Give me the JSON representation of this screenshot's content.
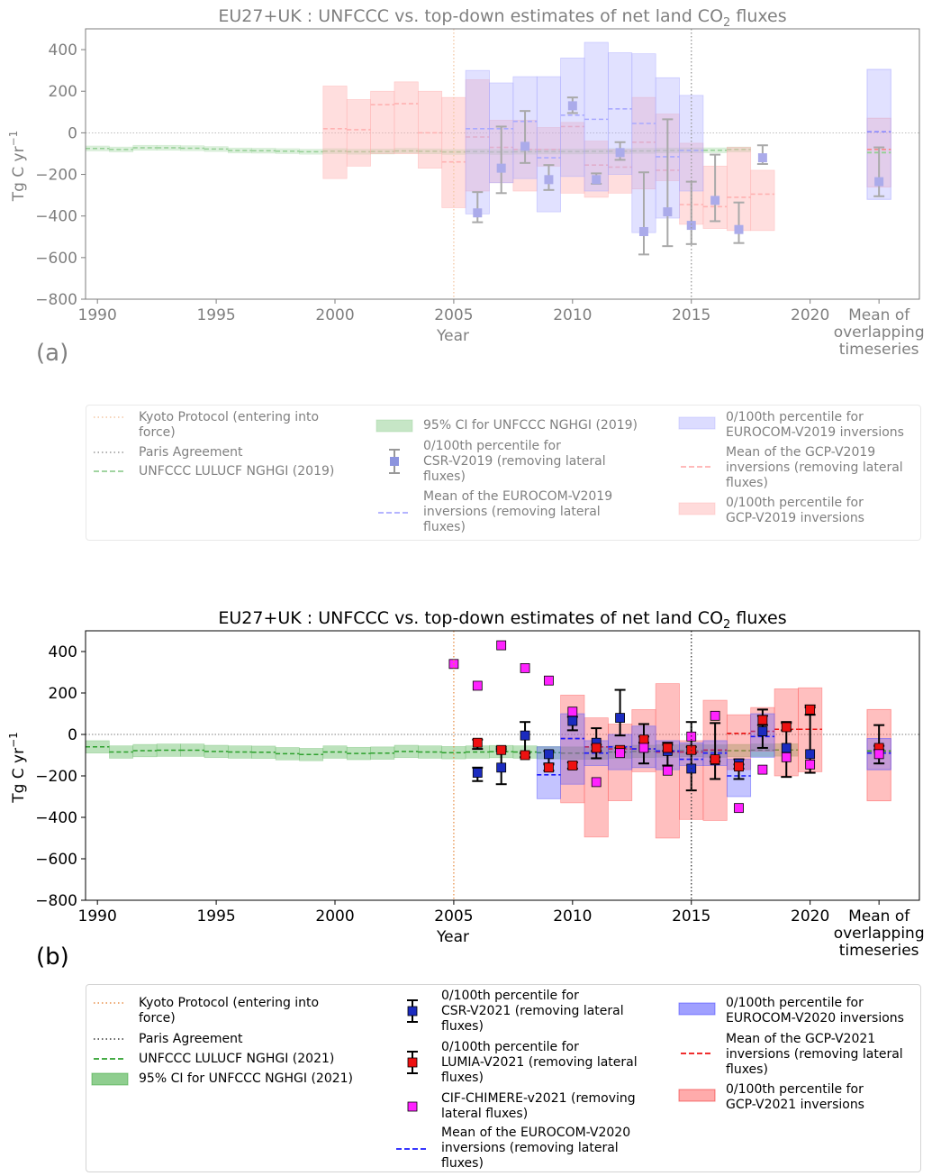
{
  "colors": {
    "kyoto": "#e8904a",
    "paris": "#333333",
    "nghgi_line": "#2ca02c",
    "nghgi_band": "#8fce8f",
    "csr": "#1b2bbf",
    "lumia": "#ee1111",
    "chimere": "#ff22ff",
    "eurocom": "#5555ff",
    "gcp": "#ff6666",
    "err": "#000000"
  },
  "chart_data": [
    {
      "type": "bar",
      "panel": "(a)",
      "faded": true,
      "title_main": "EU27+UK : UNFCCC vs. top-down estimates of net land CO",
      "title_sub": "2",
      "title_tail": " fluxes",
      "ylabel": "Tg C yr",
      "ylabel_sup": "−1",
      "xlabel": "Year",
      "ylim": [
        -800,
        500
      ],
      "xlim": [
        1989.5,
        2024.6
      ],
      "yticks": [
        "400",
        "200",
        "0",
        "−200",
        "−400",
        "−600",
        "−800"
      ],
      "ytick_values": [
        400,
        200,
        0,
        -200,
        -400,
        -600,
        -800
      ],
      "xticks": [
        "1990",
        "1995",
        "2000",
        "2005",
        "2010",
        "2015",
        "2020"
      ],
      "xtick_values": [
        1990,
        1995,
        2000,
        2005,
        2010,
        2015,
        2020
      ],
      "mean_label": "Mean of\noverlapping\ntimeseries",
      "kyoto_year": 2005,
      "paris_year": 2015,
      "nghgi": {
        "years": [
          1990,
          1991,
          1992,
          1993,
          1994,
          1995,
          1996,
          1997,
          1998,
          1999,
          2000,
          2001,
          2002,
          2003,
          2004,
          2005,
          2006,
          2007,
          2008,
          2009,
          2010,
          2011,
          2012,
          2013,
          2014,
          2015,
          2016,
          2017
        ],
        "values": [
          -75,
          -80,
          -72,
          -72,
          -74,
          -78,
          -85,
          -86,
          -88,
          -91,
          -88,
          -91,
          -90,
          -87,
          -89,
          -92,
          -90,
          -92,
          -91,
          -90,
          -90,
          -89,
          -88,
          -87,
          -85,
          -84,
          -84,
          -80
        ],
        "ci": 12
      },
      "eurocom": {
        "years": [
          2006,
          2007,
          2008,
          2009,
          2010,
          2011,
          2012,
          2013,
          2014,
          2015
        ],
        "min": [
          -390,
          -240,
          -220,
          -380,
          -210,
          -280,
          -200,
          -480,
          -410,
          -280
        ],
        "max": [
          300,
          240,
          270,
          270,
          360,
          435,
          385,
          380,
          265,
          180
        ],
        "mean": [
          20,
          20,
          55,
          -120,
          85,
          65,
          115,
          45,
          -115,
          -85
        ]
      },
      "gcp": {
        "years": [
          2000,
          2001,
          2002,
          2003,
          2004,
          2005,
          2006,
          2007,
          2008,
          2009,
          2010,
          2011,
          2012,
          2013,
          2014,
          2015,
          2016,
          2017,
          2018
        ],
        "min": [
          -220,
          -160,
          -100,
          -100,
          -170,
          -360,
          -280,
          -240,
          -280,
          -160,
          -290,
          -310,
          -290,
          -270,
          -230,
          -440,
          -460,
          -470,
          -470
        ],
        "max": [
          225,
          160,
          200,
          245,
          200,
          170,
          255,
          60,
          60,
          25,
          50,
          -40,
          -80,
          170,
          90,
          -50,
          -160,
          -70,
          -180
        ],
        "mean": [
          20,
          15,
          135,
          140,
          0,
          -140,
          -20,
          -70,
          -80,
          -80,
          30,
          -155,
          -165,
          -45,
          -180,
          -345,
          -355,
          -310,
          -295
        ]
      },
      "csr": {
        "years": [
          2006,
          2007,
          2008,
          2009,
          2010,
          2011,
          2012,
          2013,
          2014,
          2015,
          2016,
          2017,
          2018
        ],
        "values": [
          -385,
          -170,
          -65,
          -225,
          130,
          -225,
          -95,
          -475,
          -380,
          -445,
          -325,
          -465,
          -120
        ],
        "min": [
          -430,
          -290,
          -145,
          -275,
          95,
          -245,
          -130,
          -585,
          -545,
          -535,
          -425,
          -530,
          -150
        ],
        "max": [
          -285,
          30,
          105,
          -155,
          170,
          -195,
          -45,
          -190,
          65,
          -235,
          -105,
          -335,
          -60
        ]
      },
      "mean_col": {
        "eurocom_min": -320,
        "eurocom_max": 305,
        "eurocom_mean": 5,
        "gcp_min": -260,
        "gcp_max": 70,
        "gcp_mean": -80,
        "nghgi_value": -95,
        "csr_value": -235,
        "csr_min": -305,
        "csr_max": -70
      }
    },
    {
      "type": "bar",
      "panel": "(b)",
      "faded": false,
      "title_main": "EU27+UK : UNFCCC vs. top-down estimates of net land CO",
      "title_sub": "2",
      "title_tail": " fluxes",
      "ylabel": "Tg C yr",
      "ylabel_sup": "−1",
      "xlabel": "Year",
      "ylim": [
        -800,
        500
      ],
      "xlim": [
        1989.5,
        2024.6
      ],
      "yticks": [
        "400",
        "200",
        "0",
        "−200",
        "−400",
        "−600",
        "−800"
      ],
      "ytick_values": [
        400,
        200,
        0,
        -200,
        -400,
        -600,
        -800
      ],
      "xticks": [
        "1990",
        "1995",
        "2000",
        "2005",
        "2010",
        "2015",
        "2020"
      ],
      "xtick_values": [
        1990,
        1995,
        2000,
        2005,
        2010,
        2015,
        2020
      ],
      "mean_label": "Mean of\noverlapping\ntimeseries",
      "kyoto_year": 2005,
      "paris_year": 2015,
      "nghgi": {
        "years": [
          1990,
          1991,
          1992,
          1993,
          1994,
          1995,
          1996,
          1997,
          1998,
          1999,
          2000,
          2001,
          2002,
          2003,
          2004,
          2005,
          2006,
          2007,
          2008,
          2009,
          2010,
          2011,
          2012,
          2013,
          2014,
          2015,
          2016,
          2017,
          2018,
          2019
        ],
        "values": [
          -60,
          -85,
          -78,
          -76,
          -76,
          -82,
          -85,
          -86,
          -93,
          -97,
          -85,
          -92,
          -90,
          -82,
          -85,
          -88,
          -85,
          -83,
          -85,
          -88,
          -90,
          -90,
          -85,
          -82,
          -80,
          -78,
          -80,
          -78,
          -76,
          -75
        ],
        "ci": 30
      },
      "eurocom": {
        "years": [
          2009,
          2010,
          2011,
          2012,
          2013,
          2014,
          2015,
          2016,
          2017,
          2018
        ],
        "min": [
          -310,
          -240,
          -150,
          -170,
          -160,
          -170,
          -150,
          -150,
          -300,
          -110
        ],
        "max": [
          -60,
          100,
          -30,
          0,
          40,
          -30,
          -40,
          -30,
          -120,
          100
        ],
        "mean": [
          -195,
          -20,
          -90,
          -60,
          -70,
          -80,
          -120,
          -90,
          -200,
          -10
        ]
      },
      "gcp": {
        "years": [
          2010,
          2011,
          2012,
          2013,
          2014,
          2015,
          2016,
          2017,
          2018,
          2019,
          2020
        ],
        "min": [
          -330,
          -495,
          -320,
          -180,
          -500,
          -410,
          -415,
          -170,
          -80,
          -200,
          -180
        ],
        "max": [
          190,
          80,
          50,
          120,
          245,
          -30,
          165,
          95,
          130,
          220,
          225
        ],
        "mean": [
          -20,
          -60,
          -70,
          -70,
          -85,
          -85,
          -75,
          5,
          15,
          25,
          25
        ]
      },
      "csr": {
        "years": [
          2006,
          2007,
          2008,
          2009,
          2010,
          2011,
          2012,
          2013,
          2014,
          2015,
          2016,
          2017,
          2018,
          2019,
          2020
        ],
        "values": [
          -185,
          -160,
          -5,
          -95,
          65,
          -40,
          80,
          -60,
          -80,
          -165,
          -125,
          -140,
          15,
          -65,
          -95
        ],
        "min": [
          -225,
          -240,
          -90,
          -140,
          20,
          -115,
          -5,
          -140,
          -150,
          -270,
          -215,
          -215,
          -65,
          -205,
          -185
        ],
        "max": [
          -160,
          -70,
          60,
          -80,
          85,
          30,
          215,
          50,
          -40,
          60,
          55,
          -120,
          120,
          60,
          130
        ]
      },
      "lumia": {
        "years": [
          2006,
          2007,
          2008,
          2009,
          2010,
          2011,
          2012,
          2013,
          2014,
          2015,
          2016,
          2017,
          2018,
          2019,
          2020
        ],
        "values": [
          -40,
          -75,
          -100,
          -160,
          -150,
          -65,
          -75,
          -25,
          -65,
          -75,
          -120,
          -155,
          70,
          35,
          120
        ],
        "min": [
          -70,
          -80,
          -110,
          -175,
          -165,
          -80,
          -85,
          -40,
          -80,
          -90,
          -130,
          -165,
          45,
          20,
          95
        ],
        "max": [
          -25,
          -60,
          -90,
          -145,
          -135,
          -50,
          -65,
          -10,
          -50,
          -60,
          -110,
          -145,
          90,
          55,
          140
        ]
      },
      "chimere": {
        "years": [
          2005,
          2006,
          2007,
          2008,
          2009,
          2010,
          2011,
          2012,
          2013,
          2014,
          2015,
          2016,
          2017,
          2018,
          2019,
          2020
        ],
        "values": [
          340,
          235,
          430,
          320,
          260,
          110,
          -230,
          -90,
          -65,
          -175,
          -10,
          90,
          -355,
          -170,
          -110,
          -145
        ]
      },
      "mean_col": {
        "eurocom_min": -170,
        "eurocom_max": -20,
        "eurocom_mean": -90,
        "gcp_min": -320,
        "gcp_max": 120,
        "gcp_mean": -80,
        "nghgi_value": -80,
        "csr_value": -70,
        "csr_min": -140,
        "csr_max": 45,
        "lumia_value": -65,
        "chimere_value": -95
      }
    }
  ],
  "legend_a": {
    "kyoto": "Kyoto Protocol (entering into\nforce)",
    "paris": "Paris Agreement",
    "nghgi": "UNFCCC LULUCF NGHGI (2019)",
    "ci": "95% CI for UNFCCC NGHGI (2019)",
    "csr": "0/100th percentile for\nCSR-V2019 (removing lateral\nfluxes)",
    "eurocom_mean": "Mean of the EUROCOM-V2019\ninversions (removing lateral\nfluxes)",
    "eurocom_band": "0/100th percentile for\nEUROCOM-V2019 inversions",
    "gcp_mean": "Mean of the GCP-V2019\ninversions (removing lateral\nfluxes)",
    "gcp_band": "0/100th percentile for\nGCP-V2019 inversions"
  },
  "legend_b": {
    "kyoto": "Kyoto Protocol (entering into\nforce)",
    "paris": "Paris Agreement",
    "nghgi": "UNFCCC LULUCF NGHGI (2021)",
    "ci": "95% CI for UNFCCC NGHGI (2021)",
    "csr": "0/100th percentile for\nCSR-V2021 (removing lateral\nfluxes)",
    "lumia": "0/100th percentile for\nLUMIA-V2021 (removing lateral\nfluxes)",
    "chimere": "CIF-CHIMERE-v2021 (removing\nlateral fluxes)",
    "eurocom_mean": "Mean of the EUROCOM-V2020\ninversions (removing lateral\nfluxes)",
    "eurocom_band": "0/100th percentile for\nEUROCOM-V2020 inversions",
    "gcp_mean": "Mean of the GCP-V2021\ninversions (removing lateral\nfluxes)",
    "gcp_band": "0/100th percentile for\nGCP-V2021 inversions"
  }
}
